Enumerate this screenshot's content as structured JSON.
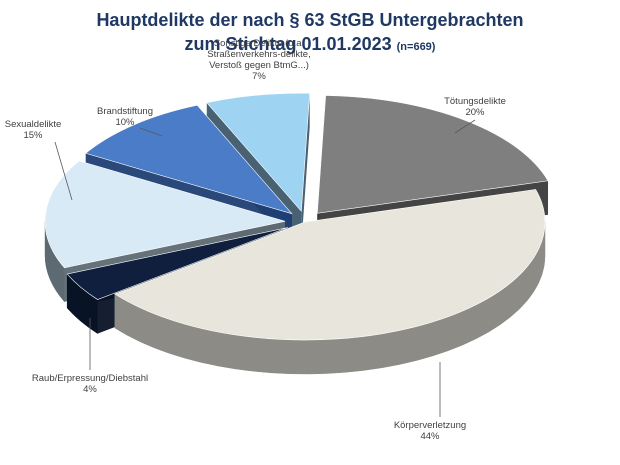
{
  "chart_data": {
    "type": "pie",
    "title": "Hauptdelikte der nach § 63 StGB Untergebrachten",
    "subtitle": "zum Stichtag 01.01.2023",
    "sample_size_label": "(n=669)",
    "slices": [
      {
        "label": "Tötungsdelikte",
        "value_label": "20%",
        "value": 20,
        "color": "#7f7f7f",
        "side_color": "#3a3a3a",
        "exploded": true
      },
      {
        "label": "Körperverletzung",
        "value_label": "44%",
        "value": 44,
        "color": "#e8e6dc",
        "side_color": "#8c8b85",
        "exploded": false
      },
      {
        "label": "Raub/Erpressung/Diebstahl",
        "value_label": "4%",
        "value": 4,
        "color": "#0f1f3d",
        "side_color": "#081326",
        "exploded": true
      },
      {
        "label": "Sexualdelikte",
        "value_label": "15%",
        "value": 15,
        "color": "#d9eaf7",
        "side_color": "#5e6a72",
        "exploded": true
      },
      {
        "label": "Brandstiftung",
        "value_label": "10%",
        "value": 10,
        "color": "#4a7cc7",
        "side_color": "#1f3f73",
        "exploded": true
      },
      {
        "label_lines": [
          "Sonstige Delikte (u.a.",
          "Straßenverkehrs-delikte,",
          "Verstoß gegen BtmG...)"
        ],
        "value_label": "7%",
        "value": 7,
        "color": "#9fd3f2",
        "side_color": "#3f5a6b",
        "exploded": true
      }
    ]
  }
}
